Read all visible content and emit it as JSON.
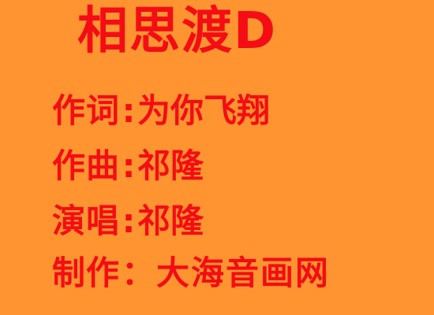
{
  "title": "相思渡D",
  "credits": [
    {
      "label": "作词",
      "separator": ":",
      "value": "为你飞翔"
    },
    {
      "label": "作曲",
      "separator": ":",
      "value": "祁隆"
    },
    {
      "label": "演唱",
      "separator": ":",
      "value": "祁隆"
    },
    {
      "label": "制作",
      "separator": "：",
      "value": "大海音画网"
    }
  ],
  "colors": {
    "background": "#ff9431",
    "text": "#f40d14"
  }
}
